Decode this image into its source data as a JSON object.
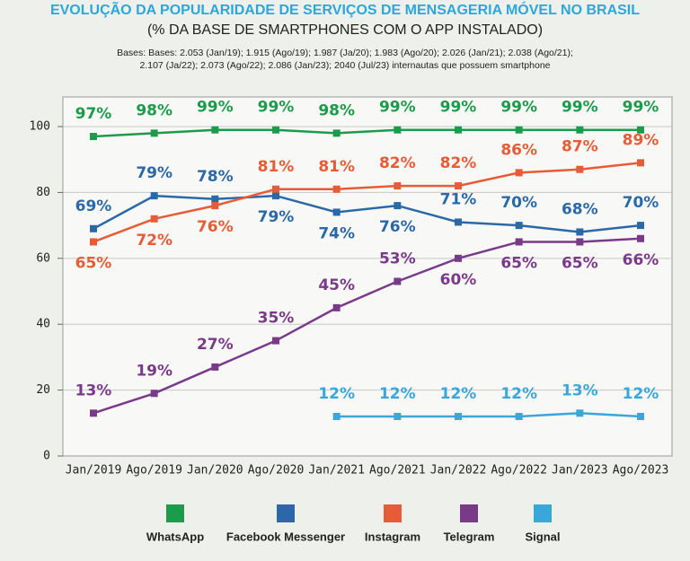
{
  "chart_data": {
    "type": "line",
    "title": "EVOLUÇÃO DA POPULARIDADE DE SERVIÇOS DE MENSAGERIA MÓVEL NO BRASIL",
    "subtitle": "(% DA BASE DE SMARTPHONES COM O APP INSTALADO)",
    "note": [
      "Bases: Bases: 2.053 (Jan/19); 1.915 (Ago/19); 1.987 (Ja/20); 1.983 (Ago/20); 2.026 (Jan/21); 2.038 (Ago/21);",
      "2.107 (Ja/22); 2.073 (Ago/22); 2.086 (Jan/23); 2040 (Jul/23) internautas que possuem smartphone"
    ],
    "categories": [
      "Jan/2019",
      "Ago/2019",
      "Jan/2020",
      "Ago/2020",
      "Jan/2021",
      "Ago/2021",
      "Jan/2022",
      "Ago/2022",
      "Jan/2023",
      "Ago/2023"
    ],
    "series": [
      {
        "name": "WhatsApp",
        "color": "#1e9a4b",
        "values": [
          97,
          98,
          99,
          99,
          98,
          99,
          99,
          99,
          99,
          99
        ],
        "value_labels": [
          "97%",
          "98%",
          "99%",
          "99%",
          "98%",
          "99%",
          "99%",
          "99%",
          "99%",
          "99%"
        ]
      },
      {
        "name": "Facebook Messenger",
        "color": "#2b69a6",
        "values": [
          69,
          79,
          78,
          79,
          74,
          76,
          71,
          70,
          68,
          70
        ],
        "value_labels": [
          "69%",
          "79%",
          "78%",
          "79%",
          "74%",
          "76%",
          "71%",
          "70%",
          "68%",
          "70%"
        ]
      },
      {
        "name": "Instagram",
        "color": "#e65c36",
        "values": [
          65,
          72,
          76,
          81,
          81,
          82,
          82,
          86,
          87,
          89
        ],
        "value_labels": [
          "65%",
          "72%",
          "76%",
          "81%",
          "81%",
          "82%",
          "82%",
          "86%",
          "87%",
          "89%"
        ]
      },
      {
        "name": "Telegram",
        "color": "#7a3a8a",
        "values": [
          13,
          19,
          27,
          35,
          45,
          53,
          60,
          65,
          65,
          66
        ],
        "value_labels": [
          "13%",
          "19%",
          "27%",
          "35%",
          "45%",
          "53%",
          "60%",
          "65%",
          "65%",
          "66%"
        ]
      },
      {
        "name": "Signal",
        "color": "#3aa6d9",
        "values": [
          null,
          null,
          null,
          null,
          12,
          12,
          12,
          12,
          13,
          12
        ],
        "value_labels": [
          null,
          null,
          null,
          null,
          "12%",
          "12%",
          "12%",
          "12%",
          "13%",
          "12%"
        ]
      }
    ],
    "ylim": [
      0,
      109
    ],
    "yticks": [
      0,
      20,
      40,
      60,
      80,
      100
    ],
    "grid": true
  }
}
